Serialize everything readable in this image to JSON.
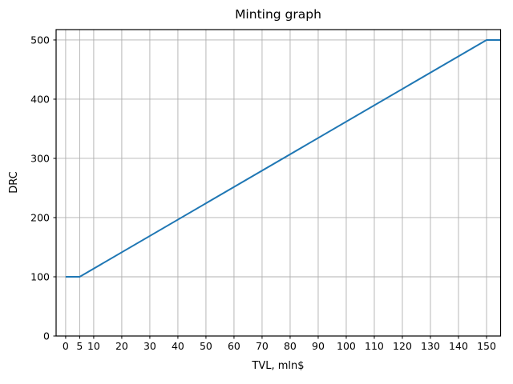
{
  "figure": {
    "background": "#ffffff",
    "text_color": "#000000",
    "spine_color": "#000000"
  },
  "chart_data": {
    "type": "line",
    "title": "Minting graph",
    "xlabel": "TVL, mln$",
    "ylabel": "DRC",
    "grid": true,
    "grid_color": "#b0b0b0",
    "legend": "none",
    "xlim": [
      -3.4,
      155
    ],
    "ylim": [
      0,
      517.5
    ],
    "xticks": [
      0,
      5,
      10,
      20,
      30,
      40,
      50,
      60,
      70,
      80,
      90,
      100,
      110,
      120,
      130,
      140,
      150
    ],
    "yticks": [
      0,
      100,
      200,
      300,
      400,
      500
    ],
    "series": [
      {
        "name": "DRC",
        "color": "#1f77b4",
        "line_width": 2,
        "points": [
          {
            "x": 0,
            "y": 100
          },
          {
            "x": 5,
            "y": 100
          },
          {
            "x": 150,
            "y": 500
          },
          {
            "x": 155,
            "y": 500
          }
        ],
        "shape": "flat at 100 until TVL=5, linear to 500 at TVL=150, capped at 500 after"
      }
    ]
  }
}
